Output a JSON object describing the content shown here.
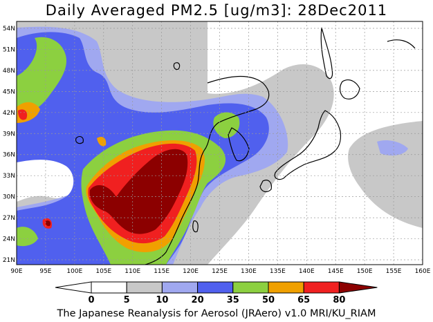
{
  "title": "Daily Averaged PM2.5 [ug/m3]: 28Dec2011",
  "footer": "The Japanese Reanalysis for Aerosol (JRAero) v1.0 MRI/KU_RIAM",
  "colors": {
    "lt5": "#ffffff",
    "c5_10": "#c8c8c8",
    "c10_20": "#a0a8f0",
    "c20_35": "#5060ee",
    "c35_50": "#8cd040",
    "c50_65": "#f0a000",
    "c65_80": "#f02020",
    "gt80": "#8c0000",
    "land": "#ffffff",
    "coast": "#000000"
  },
  "map": {
    "lon_ticks": [
      "90E",
      "95E",
      "100E",
      "105E",
      "110E",
      "115E",
      "120E",
      "125E",
      "130E",
      "135E",
      "140E",
      "145E",
      "150E",
      "155E",
      "160E"
    ],
    "lat_ticks": [
      "21N",
      "24N",
      "27N",
      "30N",
      "33N",
      "36N",
      "39N",
      "42N",
      "45N",
      "48N",
      "51N",
      "54N"
    ]
  },
  "colorbar": {
    "labels": [
      "0",
      "5",
      "10",
      "20",
      "35",
      "50",
      "65",
      "80"
    ]
  }
}
